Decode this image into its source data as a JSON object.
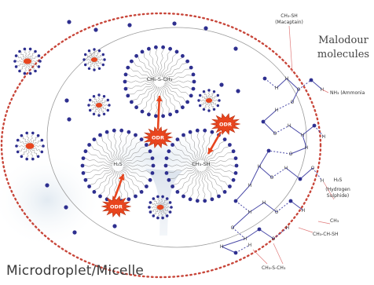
{
  "caption": "Microdroplet/Micelle",
  "labels": {
    "malodour_line1": "Malodour",
    "malodour_line2": "molecules",
    "mercaptan_formula": "CH₃-SH",
    "mercaptan_name": "(Macaptain)",
    "ammonia": "NH₃ (Ammonia",
    "h2s_formula": "H₂S",
    "h2s_name1": "(Hydrogen",
    "h2s_name2": "Sulphide)",
    "ch3_lone": "CH₃",
    "ch3_ch_sh": "CH₃-CH-SH",
    "ch3_s_ch3": "CH₃-S-CH₃"
  },
  "micelles": [
    {
      "core_label": "CH₃-S-CH₃"
    },
    {
      "core_label": "H₂S"
    },
    {
      "core_label": "CH₃-SH"
    }
  ],
  "odr_badges": [
    "ODR",
    "ODR",
    "ODR"
  ],
  "colors": {
    "micelle_heads": "#2e2f8f",
    "outer_dotted_ring": "#c8463a",
    "arrows": "#e8451e",
    "burst": "#e8451e",
    "bonds": "#4a4aa8",
    "pointer_lines": "#e07a7a"
  }
}
